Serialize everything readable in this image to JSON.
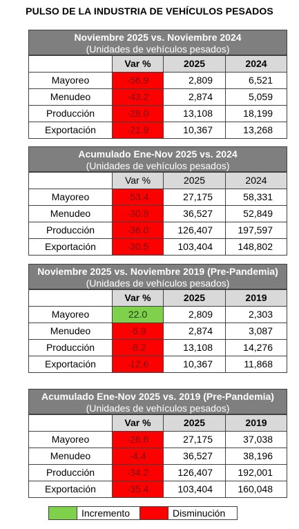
{
  "title": "PULSO DE LA INDUSTRIA DE VEHÍCULOS PESADOS",
  "tables": [
    {
      "title": "Noviembre 2025 vs. Noviembre 2024",
      "subtitle": "(Unidades de vehículos pesados)",
      "headers": [
        "",
        "Var %",
        "2025",
        "2024"
      ],
      "rows": [
        {
          "label": "Mayoreo",
          "var": "-56.9",
          "y1": "2,809",
          "y2": "6,521",
          "status": "decrease"
        },
        {
          "label": "Menudeo",
          "var": "-43.2",
          "y1": "2,874",
          "y2": "5,059",
          "status": "decrease"
        },
        {
          "label": "Producción",
          "var": "-28.0",
          "y1": "13,108",
          "y2": "18,199",
          "status": "decrease"
        },
        {
          "label": "Exportación",
          "var": "-21.9",
          "y1": "10,367",
          "y2": "13,268",
          "status": "decrease"
        }
      ]
    },
    {
      "title": "Acumulado Ene-Nov 2025 vs. 2024",
      "subtitle": "(Unidades de vehículos pesados)",
      "headers": [
        "",
        "Var %",
        "2025",
        "2024"
      ],
      "rows": [
        {
          "label": "Mayoreo",
          "var": "-53.4",
          "y1": "27,175",
          "y2": "58,331",
          "status": "decrease"
        },
        {
          "label": "Menudeo",
          "var": "-30.9",
          "y1": "36,527",
          "y2": "52,849",
          "status": "decrease"
        },
        {
          "label": "Producción",
          "var": "-36.0",
          "y1": "126,407",
          "y2": "197,597",
          "status": "decrease"
        },
        {
          "label": "Exportación",
          "var": "-30.5",
          "y1": "103,404",
          "y2": "148,802",
          "status": "decrease"
        }
      ]
    },
    {
      "title": "Noviembre 2025 vs. Noviembre 2019 (Pre-Pandemia)",
      "subtitle": "(Unidades de vehículos pesados)",
      "headers": [
        "",
        "Var %",
        "2025",
        "2019"
      ],
      "rows": [
        {
          "label": "Mayoreo",
          "var": "22.0",
          "y1": "2,809",
          "y2": "2,303",
          "status": "increase"
        },
        {
          "label": "Menudeo",
          "var": "-6.9",
          "y1": "2,874",
          "y2": "3,087",
          "status": "decrease"
        },
        {
          "label": "Producción",
          "var": "-8.2",
          "y1": "13,108",
          "y2": "14,276",
          "status": "decrease"
        },
        {
          "label": "Exportación",
          "var": "-12.6",
          "y1": "10,367",
          "y2": "11,868",
          "status": "decrease"
        }
      ]
    },
    {
      "title": "Acumulado Ene-Nov 2025 vs. 2019 (Pre-Pandemia)",
      "subtitle": "(Unidades de vehículos pesados)",
      "headers": [
        "",
        "Var %",
        "2025",
        "2019"
      ],
      "rows": [
        {
          "label": "Mayoreo",
          "var": "-26.6",
          "y1": "27,175",
          "y2": "37,038",
          "status": "decrease"
        },
        {
          "label": "Menudeo",
          "var": "-4.4",
          "y1": "36,527",
          "y2": "38,196",
          "status": "decrease"
        },
        {
          "label": "Producción",
          "var": "-34.2",
          "y1": "126,407",
          "y2": "192,001",
          "status": "decrease"
        },
        {
          "label": "Exportación",
          "var": "-35.4",
          "y1": "103,404",
          "y2": "160,048",
          "status": "decrease"
        }
      ]
    }
  ],
  "legend": {
    "increase_label": "Incremento",
    "decrease_label": "Disminución",
    "increase_color": "#7fd04a",
    "decrease_color": "#ff0000"
  }
}
